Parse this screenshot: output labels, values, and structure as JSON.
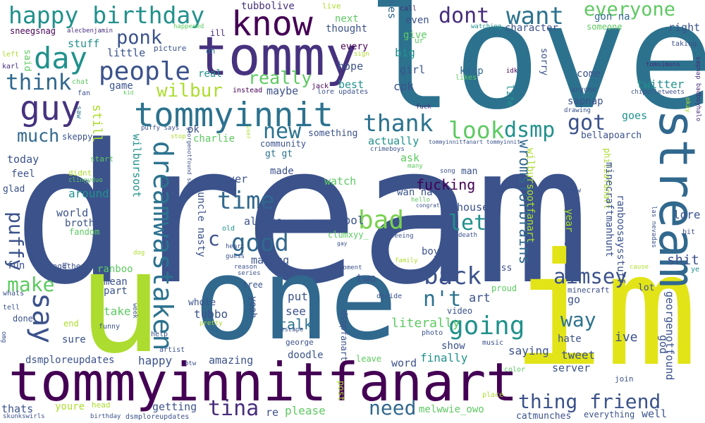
{
  "words": [
    {
      "text": "dream",
      "color": "#3b528b"
    },
    {
      "text": "love",
      "color": "#2c728e"
    },
    {
      "text": "im",
      "color": "#e2e418"
    },
    {
      "text": "one",
      "color": "#31688e"
    },
    {
      "text": "u",
      "color": "#addc30"
    },
    {
      "text": "tommyinnitfanart",
      "color": "#440154"
    },
    {
      "text": "tommy",
      "color": "#46327e"
    },
    {
      "text": "stream",
      "color": "#31688e"
    },
    {
      "text": "tommyinnit",
      "color": "#2c728e"
    },
    {
      "text": "know",
      "color": "#440154"
    },
    {
      "text": "happy birthday",
      "color": "#21918c"
    },
    {
      "text": "dreamwastaken",
      "color": "#2c728e"
    },
    {
      "text": "day",
      "color": "#21918c"
    },
    {
      "text": "guy",
      "color": "#46327e"
    },
    {
      "text": "people",
      "color": "#3b528b"
    },
    {
      "text": "say",
      "color": "#3b528b"
    },
    {
      "text": "want",
      "color": "#2c728e"
    },
    {
      "text": "dont",
      "color": "#472d7b"
    },
    {
      "text": "everyone",
      "color": "#5ec962"
    },
    {
      "text": "thank",
      "color": "#2c728e"
    },
    {
      "text": "ponk",
      "color": "#3b528b"
    },
    {
      "text": "think",
      "color": "#31688e"
    },
    {
      "text": "puffy",
      "color": "#3b528b"
    },
    {
      "text": "wilbur",
      "color": "#addc30"
    },
    {
      "text": "really",
      "color": "#5ec962"
    },
    {
      "text": "good",
      "color": "#31688e"
    },
    {
      "text": "going",
      "color": "#21918c"
    },
    {
      "text": "thing friend",
      "color": "#3b528b"
    },
    {
      "text": "time",
      "color": "#31688e"
    },
    {
      "text": "back",
      "color": "#3b528b"
    },
    {
      "text": "look",
      "color": "#5ec962"
    },
    {
      "text": "dsmp",
      "color": "#21918c"
    },
    {
      "text": "bad",
      "color": "#7ad151"
    },
    {
      "text": "new",
      "color": "#2c728e"
    },
    {
      "text": "got",
      "color": "#3b528b"
    },
    {
      "text": "make",
      "color": "#5ec962"
    },
    {
      "text": "wromsforbrains",
      "color": "#31688e"
    },
    {
      "text": "aimsey",
      "color": "#3b528b"
    },
    {
      "text": "tina",
      "color": "#472d7b"
    },
    {
      "text": "need",
      "color": "#31688e"
    },
    {
      "text": "way",
      "color": "#2c728e"
    },
    {
      "text": "let",
      "color": "#21918c"
    },
    {
      "text": "n't",
      "color": "#2c728e"
    },
    {
      "text": "much",
      "color": "#31688e"
    },
    {
      "text": "c",
      "color": "#3b528b"
    },
    {
      "text": "shit",
      "color": "#3b528b"
    },
    {
      "text": "literally",
      "color": "#5ec962"
    },
    {
      "text": "talk",
      "color": "#2c728e"
    },
    {
      "text": "fucking",
      "color": "#440154"
    },
    {
      "text": "tubbolive",
      "color": "#46327e"
    },
    {
      "text": "sneegsnag",
      "color": "#440154"
    },
    {
      "text": "alecbenjamin",
      "color": "#472d7b"
    },
    {
      "text": "hes",
      "color": "#31688e"
    },
    {
      "text": "call",
      "color": "#472d7b"
    },
    {
      "text": "even",
      "color": "#3b528b"
    },
    {
      "text": "give",
      "color": "#5ec962"
    },
    {
      "text": "thought",
      "color": "#3b528b"
    },
    {
      "text": "next",
      "color": "#5ec962"
    },
    {
      "text": "live",
      "color": "#addc30"
    },
    {
      "text": "happened",
      "color": "#5ec962"
    },
    {
      "text": "character",
      "color": "#3b528b"
    },
    {
      "text": "watching",
      "color": "#21918c"
    },
    {
      "text": "gon na",
      "color": "#31688e"
    },
    {
      "text": "someone",
      "color": "#5ec962"
    },
    {
      "text": "right",
      "color": "#3b528b"
    },
    {
      "text": "taking",
      "color": "#3b528b"
    },
    {
      "text": "stuff",
      "color": "#21918c"
    },
    {
      "text": "said",
      "color": "#5ec962"
    },
    {
      "text": "left",
      "color": "#addc30"
    },
    {
      "text": "karl",
      "color": "#472d7b"
    },
    {
      "text": "little",
      "color": "#3b528b"
    },
    {
      "text": "picture",
      "color": "#3b528b"
    },
    {
      "text": "oh",
      "color": "#2c728e"
    },
    {
      "text": "ill",
      "color": "#472d7b"
    },
    {
      "text": "every",
      "color": "#440154"
    },
    {
      "text": "sign",
      "color": "#addc30"
    },
    {
      "text": "hope",
      "color": "#3b528b"
    },
    {
      "text": "big",
      "color": "#21918c"
    },
    {
      "text": "ur",
      "color": "#5ec962"
    },
    {
      "text": "girl",
      "color": "#3b528b"
    },
    {
      "text": "keep",
      "color": "#31688e"
    },
    {
      "text": "likes",
      "color": "#5ec962"
    },
    {
      "text": "idk",
      "color": "#440154"
    },
    {
      "text": "sorry",
      "color": "#3b528b"
    },
    {
      "text": "come",
      "color": "#3b528b"
    },
    {
      "text": "twitter",
      "color": "#21918c"
    },
    {
      "text": "tomsimons",
      "color": "#472d7b"
    },
    {
      "text": "chipotletweets",
      "color": "#3b528b"
    },
    {
      "text": "sapnap badboyhalo",
      "color": "#472d7b"
    },
    {
      "text": "anyone",
      "color": "#3b528b"
    },
    {
      "text": "game",
      "color": "#3b528b"
    },
    {
      "text": "chat",
      "color": "#5ec962"
    },
    {
      "text": "fan",
      "color": "#3b528b"
    },
    {
      "text": "kid",
      "color": "#5ec962"
    },
    {
      "text": "real",
      "color": "#21918c"
    },
    {
      "text": "instead",
      "color": "#440154"
    },
    {
      "text": "maybe",
      "color": "#3b528b"
    },
    {
      "text": "jack",
      "color": "#440154"
    },
    {
      "text": "lore updates",
      "color": "#3b528b"
    },
    {
      "text": "best",
      "color": "#21918c"
    },
    {
      "text": "cpk",
      "color": "#3b528b"
    },
    {
      "text": "saw",
      "color": "#2c728e"
    },
    {
      "text": "still",
      "color": "#addc30"
    },
    {
      "text": "skeppy",
      "color": "#3b528b"
    },
    {
      "text": "puffy says",
      "color": "#3b528b"
    },
    {
      "text": "ok",
      "color": "#3b528b"
    },
    {
      "text": "charlie",
      "color": "#5ec962"
    },
    {
      "text": "user",
      "color": "#addc30"
    },
    {
      "text": "something",
      "color": "#3b528b"
    },
    {
      "text": "life",
      "color": "#21918c"
    },
    {
      "text": "fuck",
      "color": "#472d7b"
    },
    {
      "text": "drawing",
      "color": "#3b528b"
    },
    {
      "text": "sapnap",
      "color": "#3b528b"
    },
    {
      "text": "goes",
      "color": "#21918c"
    },
    {
      "text": "bellapoarch",
      "color": "#3b528b"
    },
    {
      "text": "okay",
      "color": "#addc30"
    },
    {
      "text": "wilbursoot",
      "color": "#21918c"
    },
    {
      "text": "stop",
      "color": "#addc30"
    },
    {
      "text": "georgenotfound sapnap",
      "color": "#3b528b"
    },
    {
      "text": "community",
      "color": "#3b528b"
    },
    {
      "text": "gt gt",
      "color": "#2c728e"
    },
    {
      "text": "actually",
      "color": "#21918c"
    },
    {
      "text": "crimeboys",
      "color": "#3b528b"
    },
    {
      "text": "tommyinnitfanart tommyinnit",
      "color": "#3b528b"
    },
    {
      "text": "philzafanart",
      "color": "#addc30"
    },
    {
      "text": "today",
      "color": "#3b528b"
    },
    {
      "text": "start",
      "color": "#5ec962"
    },
    {
      "text": "feel",
      "color": "#3b528b"
    },
    {
      "text": "glad",
      "color": "#3b528b"
    },
    {
      "text": "didnt",
      "color": "#addc30"
    },
    {
      "text": "clingyduo",
      "color": "#5ec962"
    },
    {
      "text": "slimecicle",
      "color": "#3b528b"
    },
    {
      "text": "around",
      "color": "#21918c"
    },
    {
      "text": "never",
      "color": "#3b528b"
    },
    {
      "text": "made",
      "color": "#3b528b"
    },
    {
      "text": "ask",
      "color": "#5ec962"
    },
    {
      "text": "many",
      "color": "#5ec962"
    },
    {
      "text": "wan na",
      "color": "#3b528b"
    },
    {
      "text": "song",
      "color": "#3b528b"
    },
    {
      "text": "man",
      "color": "#3b528b"
    },
    {
      "text": "minecraftmanhunt",
      "color": "#3b528b"
    },
    {
      "text": "draw",
      "color": "#3b528b"
    },
    {
      "text": "las nevadas",
      "color": "#3b528b"
    },
    {
      "text": "ranboosaysstuff",
      "color": "#3b528b"
    },
    {
      "text": "wilbursootfanart",
      "color": "#addc30"
    },
    {
      "text": "world",
      "color": "#3b528b"
    },
    {
      "text": "brother",
      "color": "#3b528b"
    },
    {
      "text": "fandom",
      "color": "#5ec962"
    },
    {
      "text": "ant",
      "color": "#3b528b"
    },
    {
      "text": "watch",
      "color": "#5ec962"
    },
    {
      "text": "house",
      "color": "#3b528b"
    },
    {
      "text": "hello",
      "color": "#5ec962"
    },
    {
      "text": "congrats",
      "color": "#3b528b"
    },
    {
      "text": "lore",
      "color": "#3b528b"
    },
    {
      "text": "bit",
      "color": "#3b528b"
    },
    {
      "text": "year",
      "color": "#addc30"
    },
    {
      "text": "cant",
      "color": "#3b528b"
    },
    {
      "text": "uncle nasty",
      "color": "#3b528b"
    },
    {
      "text": "always",
      "color": "#3b528b"
    },
    {
      "text": "cool",
      "color": "#3b528b"
    },
    {
      "text": "clumxyy_",
      "color": "#5ec962"
    },
    {
      "text": "death",
      "color": "#3b528b"
    },
    {
      "text": "might",
      "color": "#3b528b"
    },
    {
      "text": "old",
      "color": "#21918c"
    },
    {
      "text": "heart",
      "color": "#3b528b"
    },
    {
      "text": "gay",
      "color": "#3b528b"
    },
    {
      "text": "seeing",
      "color": "#3b528b"
    },
    {
      "text": "boy",
      "color": "#3b528b"
    },
    {
      "text": "dog",
      "color": "#addc30"
    },
    {
      "text": "guess",
      "color": "#3b528b"
    },
    {
      "text": "family",
      "color": "#addc30"
    },
    {
      "text": "fun",
      "color": "#3b528b"
    },
    {
      "text": "making",
      "color": "#3b528b"
    },
    {
      "text": "together",
      "color": "#3b528b"
    },
    {
      "text": "ranboo",
      "color": "#5ec962"
    },
    {
      "text": "reason",
      "color": "#3b528b"
    },
    {
      "text": "series",
      "color": "#3b528b"
    },
    {
      "text": "moment",
      "color": "#3b528b"
    },
    {
      "text": "miss",
      "color": "#3b528b"
    },
    {
      "text": "cause",
      "color": "#addc30"
    },
    {
      "text": "ye",
      "color": "#21918c"
    },
    {
      "text": "brain",
      "color": "#3b528b"
    },
    {
      "text": "mean",
      "color": "#3b528b"
    },
    {
      "text": "part",
      "color": "#3b528b"
    },
    {
      "text": "two",
      "color": "#3b528b"
    },
    {
      "text": "tree",
      "color": "#3b528b"
    },
    {
      "text": "proud",
      "color": "#5ec962"
    },
    {
      "text": "minecraft",
      "color": "#3b528b"
    },
    {
      "text": "lot",
      "color": "#3b528b"
    },
    {
      "text": "whats",
      "color": "#3b528b"
    },
    {
      "text": "decide",
      "color": "#3b528b"
    },
    {
      "text": "art",
      "color": "#3b528b"
    },
    {
      "text": "tell",
      "color": "#3b528b"
    },
    {
      "text": "take",
      "color": "#5ec962"
    },
    {
      "text": "put",
      "color": "#3b528b"
    },
    {
      "text": "go",
      "color": "#3b528b"
    },
    {
      "text": "god",
      "color": "#3b528b"
    },
    {
      "text": "whole",
      "color": "#3b528b"
    },
    {
      "text": "georgenotfound",
      "color": "#3b528b"
    },
    {
      "text": "yeah",
      "color": "#3b528b"
    },
    {
      "text": "tubbo",
      "color": "#3b528b"
    },
    {
      "text": "see",
      "color": "#3b528b"
    },
    {
      "text": "done",
      "color": "#3b528b"
    },
    {
      "text": "video",
      "color": "#3b528b"
    },
    {
      "text": "end",
      "color": "#addc30"
    },
    {
      "text": "pretty",
      "color": "#addc30"
    },
    {
      "text": "week",
      "color": "#3b528b"
    },
    {
      "text": "funny",
      "color": "#3b528b"
    },
    {
      "text": "hate",
      "color": "#3b528b"
    },
    {
      "text": "ive",
      "color": "#3b528b"
    },
    {
      "text": "omg",
      "color": "#3b528b"
    },
    {
      "text": "george",
      "color": "#3b528b"
    },
    {
      "text": "escape",
      "color": "#3b528b"
    },
    {
      "text": "photo",
      "color": "#3b528b"
    },
    {
      "text": "help",
      "color": "#3b528b"
    },
    {
      "text": "sure",
      "color": "#3b528b"
    },
    {
      "text": "dsmpfanart",
      "color": "#3b528b"
    },
    {
      "text": "show",
      "color": "#3b528b"
    },
    {
      "text": "music",
      "color": "#3b528b"
    },
    {
      "text": "saying",
      "color": "#3b528b"
    },
    {
      "text": "tweet",
      "color": "#3b528b"
    },
    {
      "text": "artist",
      "color": "#3b528b"
    },
    {
      "text": "doodle",
      "color": "#3b528b"
    },
    {
      "text": "dsmploreupdates",
      "color": "#3b528b"
    },
    {
      "text": "happy",
      "color": "#3b528b"
    },
    {
      "text": "amazing",
      "color": "#3b528b"
    },
    {
      "text": "btw",
      "color": "#3b528b"
    },
    {
      "text": "leave",
      "color": "#5ec962"
    },
    {
      "text": "word",
      "color": "#3b528b"
    },
    {
      "text": "finally",
      "color": "#21918c"
    },
    {
      "text": "color",
      "color": "#5ec962"
    },
    {
      "text": "server",
      "color": "#3b528b"
    },
    {
      "text": "join",
      "color": "#3b528b"
    },
    {
      "text": "head",
      "color": "#addc30"
    },
    {
      "text": "youre",
      "color": "#addc30"
    },
    {
      "text": "getting",
      "color": "#3b528b"
    },
    {
      "text": "re",
      "color": "#3b528b"
    },
    {
      "text": "please",
      "color": "#5ec962"
    },
    {
      "text": "post",
      "color": "#addc30"
    },
    {
      "text": "melwwie_owo",
      "color": "#5ec962"
    },
    {
      "text": "place",
      "color": "#addc30"
    },
    {
      "text": "catmunches",
      "color": "#3b528b"
    },
    {
      "text": "everything",
      "color": "#3b528b"
    },
    {
      "text": "well",
      "color": "#3b528b"
    },
    {
      "text": "thats",
      "color": "#3b528b"
    },
    {
      "text": "skunkswirls",
      "color": "#3b528b"
    },
    {
      "text": "birthday",
      "color": "#3b528b"
    },
    {
      "text": "dsmploreupdates",
      "color": "#3b528b"
    }
  ]
}
